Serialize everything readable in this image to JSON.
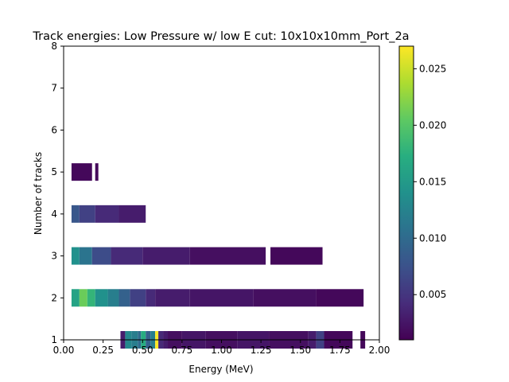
{
  "chart_data": {
    "type": "heatmap",
    "title": "Track energies: Low Pressure w/ low E cut: 10x10x10mm_Port_2a",
    "xlabel": "Energy (MeV)",
    "ylabel": "Number of tracks",
    "xlim": [
      0.0,
      2.0
    ],
    "ylim": [
      1,
      8
    ],
    "x_ticks": [
      "0.00",
      "0.25",
      "0.50",
      "0.75",
      "1.00",
      "1.25",
      "1.50",
      "1.75",
      "2.00"
    ],
    "y_ticks": [
      "1",
      "2",
      "3",
      "4",
      "5",
      "6",
      "7",
      "8"
    ],
    "colormap": "viridis",
    "colorbar": {
      "vmin": 0.001,
      "vmax": 0.027,
      "ticks": [
        "0.005",
        "0.010",
        "0.015",
        "0.020",
        "0.025"
      ]
    },
    "rows": [
      {
        "tracks": 1,
        "segments": [
          {
            "x0": 0.36,
            "x1": 0.39,
            "v": 0.003
          },
          {
            "x0": 0.39,
            "x1": 0.43,
            "v": 0.013
          },
          {
            "x0": 0.43,
            "x1": 0.47,
            "v": 0.012
          },
          {
            "x0": 0.47,
            "x1": 0.49,
            "v": 0.01
          },
          {
            "x0": 0.49,
            "x1": 0.52,
            "v": 0.017
          },
          {
            "x0": 0.52,
            "x1": 0.55,
            "v": 0.009
          },
          {
            "x0": 0.55,
            "x1": 0.58,
            "v": 0.012
          },
          {
            "x0": 0.58,
            "x1": 0.6,
            "v": 0.027
          },
          {
            "x0": 0.6,
            "x1": 0.63,
            "v": 0.004
          },
          {
            "x0": 0.63,
            "x1": 0.66,
            "v": 0.003
          },
          {
            "x0": 0.66,
            "x1": 0.75,
            "v": 0.002
          },
          {
            "x0": 0.75,
            "x1": 0.9,
            "v": 0.0025
          },
          {
            "x0": 0.9,
            "x1": 1.1,
            "v": 0.002
          },
          {
            "x0": 1.1,
            "x1": 1.3,
            "v": 0.0025
          },
          {
            "x0": 1.3,
            "x1": 1.55,
            "v": 0.002
          },
          {
            "x0": 1.55,
            "x1": 1.6,
            "v": 0.003
          },
          {
            "x0": 1.6,
            "x1": 1.65,
            "v": 0.006
          },
          {
            "x0": 1.65,
            "x1": 1.83,
            "v": 0.0015
          },
          {
            "x0": 1.88,
            "x1": 1.91,
            "v": 0.0015
          }
        ]
      },
      {
        "tracks": 2,
        "segments": [
          {
            "x0": 0.05,
            "x1": 0.1,
            "v": 0.016
          },
          {
            "x0": 0.1,
            "x1": 0.15,
            "v": 0.021
          },
          {
            "x0": 0.15,
            "x1": 0.2,
            "v": 0.018
          },
          {
            "x0": 0.2,
            "x1": 0.28,
            "v": 0.014
          },
          {
            "x0": 0.28,
            "x1": 0.35,
            "v": 0.012
          },
          {
            "x0": 0.35,
            "x1": 0.42,
            "v": 0.009
          },
          {
            "x0": 0.42,
            "x1": 0.52,
            "v": 0.006
          },
          {
            "x0": 0.52,
            "x1": 0.58,
            "v": 0.004
          },
          {
            "x0": 0.58,
            "x1": 0.8,
            "v": 0.003
          },
          {
            "x0": 0.8,
            "x1": 1.2,
            "v": 0.0025
          },
          {
            "x0": 1.2,
            "x1": 1.6,
            "v": 0.002
          },
          {
            "x0": 1.6,
            "x1": 1.9,
            "v": 0.0015
          }
        ]
      },
      {
        "tracks": 3,
        "segments": [
          {
            "x0": 0.05,
            "x1": 0.1,
            "v": 0.014
          },
          {
            "x0": 0.1,
            "x1": 0.18,
            "v": 0.011
          },
          {
            "x0": 0.18,
            "x1": 0.3,
            "v": 0.007
          },
          {
            "x0": 0.3,
            "x1": 0.5,
            "v": 0.004
          },
          {
            "x0": 0.5,
            "x1": 0.8,
            "v": 0.003
          },
          {
            "x0": 0.8,
            "x1": 1.28,
            "v": 0.002
          },
          {
            "x0": 1.31,
            "x1": 1.64,
            "v": 0.0015
          }
        ]
      },
      {
        "tracks": 4,
        "segments": [
          {
            "x0": 0.05,
            "x1": 0.1,
            "v": 0.008
          },
          {
            "x0": 0.1,
            "x1": 0.2,
            "v": 0.006
          },
          {
            "x0": 0.2,
            "x1": 0.35,
            "v": 0.004
          },
          {
            "x0": 0.35,
            "x1": 0.52,
            "v": 0.003
          }
        ]
      },
      {
        "tracks": 5,
        "segments": [
          {
            "x0": 0.05,
            "x1": 0.18,
            "v": 0.0015
          },
          {
            "x0": 0.2,
            "x1": 0.22,
            "v": 0.0015
          }
        ]
      }
    ]
  }
}
